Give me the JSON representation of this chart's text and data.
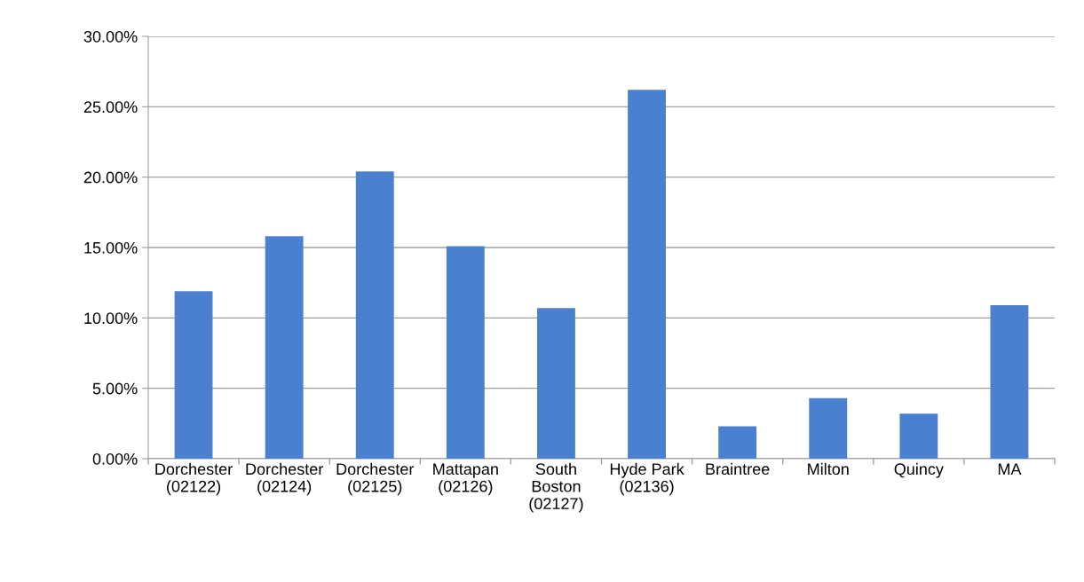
{
  "chart_data": {
    "type": "bar",
    "categories": [
      "Dorchester\n(02122)",
      "Dorchester\n(02124)",
      "Dorchester\n(02125)",
      "Mattapan\n(02126)",
      "South\nBoston\n(02127)",
      "Hyde Park\n(02136)",
      "Braintree",
      "Milton",
      "Quincy",
      "MA"
    ],
    "values": [
      11.9,
      15.8,
      20.4,
      15.1,
      10.7,
      26.2,
      2.3,
      4.3,
      3.2,
      10.9
    ],
    "color": "#4a80d0",
    "ylim": [
      0,
      30
    ],
    "yticks": [
      {
        "value": 0,
        "label": "0.00%"
      },
      {
        "value": 5,
        "label": "5.00%"
      },
      {
        "value": 10,
        "label": "10.00%"
      },
      {
        "value": 15,
        "label": "15.00%"
      },
      {
        "value": 20,
        "label": "20.00%"
      },
      {
        "value": 25,
        "label": "25.00%"
      },
      {
        "value": 30,
        "label": "30.00%"
      }
    ],
    "grid": "y"
  }
}
